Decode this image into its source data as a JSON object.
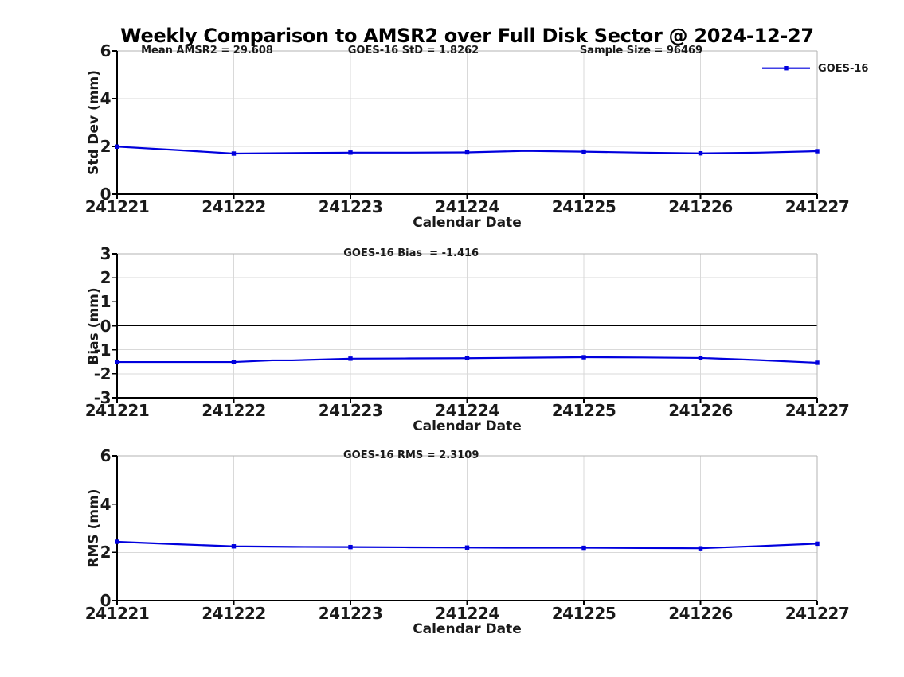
{
  "title": "Weekly Comparison to AMSR2 over Full Disk Sector @ 2024-12-27",
  "colors": {
    "series_blue": "#0000dd",
    "axis_black": "#000000",
    "box_gray": "#b3b3b3",
    "grid_gray": "#d9d9d9"
  },
  "chart_data": [
    {
      "type": "line",
      "ylabel": "Std Dev (mm)",
      "xlabel": "Calendar Date",
      "ylim": [
        0,
        6
      ],
      "yticks": [
        0,
        2,
        4,
        6
      ],
      "x_categories": [
        "241221",
        "241222",
        "241223",
        "241224",
        "241225",
        "241226",
        "241227"
      ],
      "grid": true,
      "zero_line": false,
      "annotations": [
        {
          "text": "Mean AMSR2 = 29.608",
          "xfrac": 0.1286
        },
        {
          "text": "GOES-16 StD = 1.8262",
          "xfrac": 0.4232
        },
        {
          "text": "Sample Size = 96469",
          "xfrac": 0.7486
        }
      ],
      "legend": {
        "label": "GOES-16",
        "position": "top-right-outside"
      },
      "series": [
        {
          "name": "GOES-16",
          "color": "#0000dd",
          "x": [
            0,
            0.5,
            1,
            1.5,
            2,
            2.5,
            3,
            3.5,
            4,
            4.5,
            5,
            5.5,
            6
          ],
          "y": [
            1.99,
            1.85,
            1.7,
            1.72,
            1.74,
            1.74,
            1.75,
            1.81,
            1.78,
            1.74,
            1.71,
            1.74,
            1.8
          ],
          "marker_days": [
            0,
            1,
            2,
            3,
            4,
            5,
            6
          ]
        }
      ]
    },
    {
      "type": "line",
      "ylabel": "Bias (mm)",
      "xlabel": "Calendar Date",
      "ylim": [
        -3,
        3
      ],
      "yticks": [
        -3,
        -2,
        -1,
        0,
        1,
        2,
        3
      ],
      "x_categories": [
        "241221",
        "241222",
        "241223",
        "241224",
        "241225",
        "241226",
        "241227"
      ],
      "grid": true,
      "zero_line": true,
      "annotations": [
        {
          "text": "GOES-16 Bias  = -1.416",
          "xfrac": 0.42
        }
      ],
      "series": [
        {
          "name": "GOES-16",
          "color": "#0000dd",
          "x": [
            0,
            0.5,
            1,
            1.33,
            1.5,
            2,
            2.5,
            3,
            3.5,
            4,
            4.5,
            5,
            5.5,
            6
          ],
          "y": [
            -1.51,
            -1.51,
            -1.51,
            -1.44,
            -1.44,
            -1.37,
            -1.36,
            -1.35,
            -1.33,
            -1.31,
            -1.32,
            -1.34,
            -1.43,
            -1.54
          ],
          "marker_days": [
            0,
            1,
            2,
            3,
            4,
            5,
            6
          ]
        }
      ]
    },
    {
      "type": "line",
      "ylabel": "RMS (mm)",
      "xlabel": "Calendar Date",
      "ylim": [
        0,
        6
      ],
      "yticks": [
        0,
        2,
        4,
        6
      ],
      "x_categories": [
        "241221",
        "241222",
        "241223",
        "241224",
        "241225",
        "241226",
        "241227"
      ],
      "grid": true,
      "zero_line": false,
      "annotations": [
        {
          "text": "GOES-16 RMS = 2.3109",
          "xfrac": 0.42
        }
      ],
      "series": [
        {
          "name": "GOES-16",
          "color": "#0000dd",
          "x": [
            0,
            0.5,
            1,
            1.5,
            2,
            2.5,
            3,
            3.5,
            4,
            4.5,
            5,
            5.5,
            6
          ],
          "y": [
            2.44,
            2.34,
            2.25,
            2.23,
            2.22,
            2.21,
            2.2,
            2.19,
            2.19,
            2.18,
            2.17,
            2.26,
            2.36
          ],
          "marker_days": [
            0,
            1,
            2,
            3,
            4,
            5,
            6
          ]
        }
      ]
    }
  ]
}
